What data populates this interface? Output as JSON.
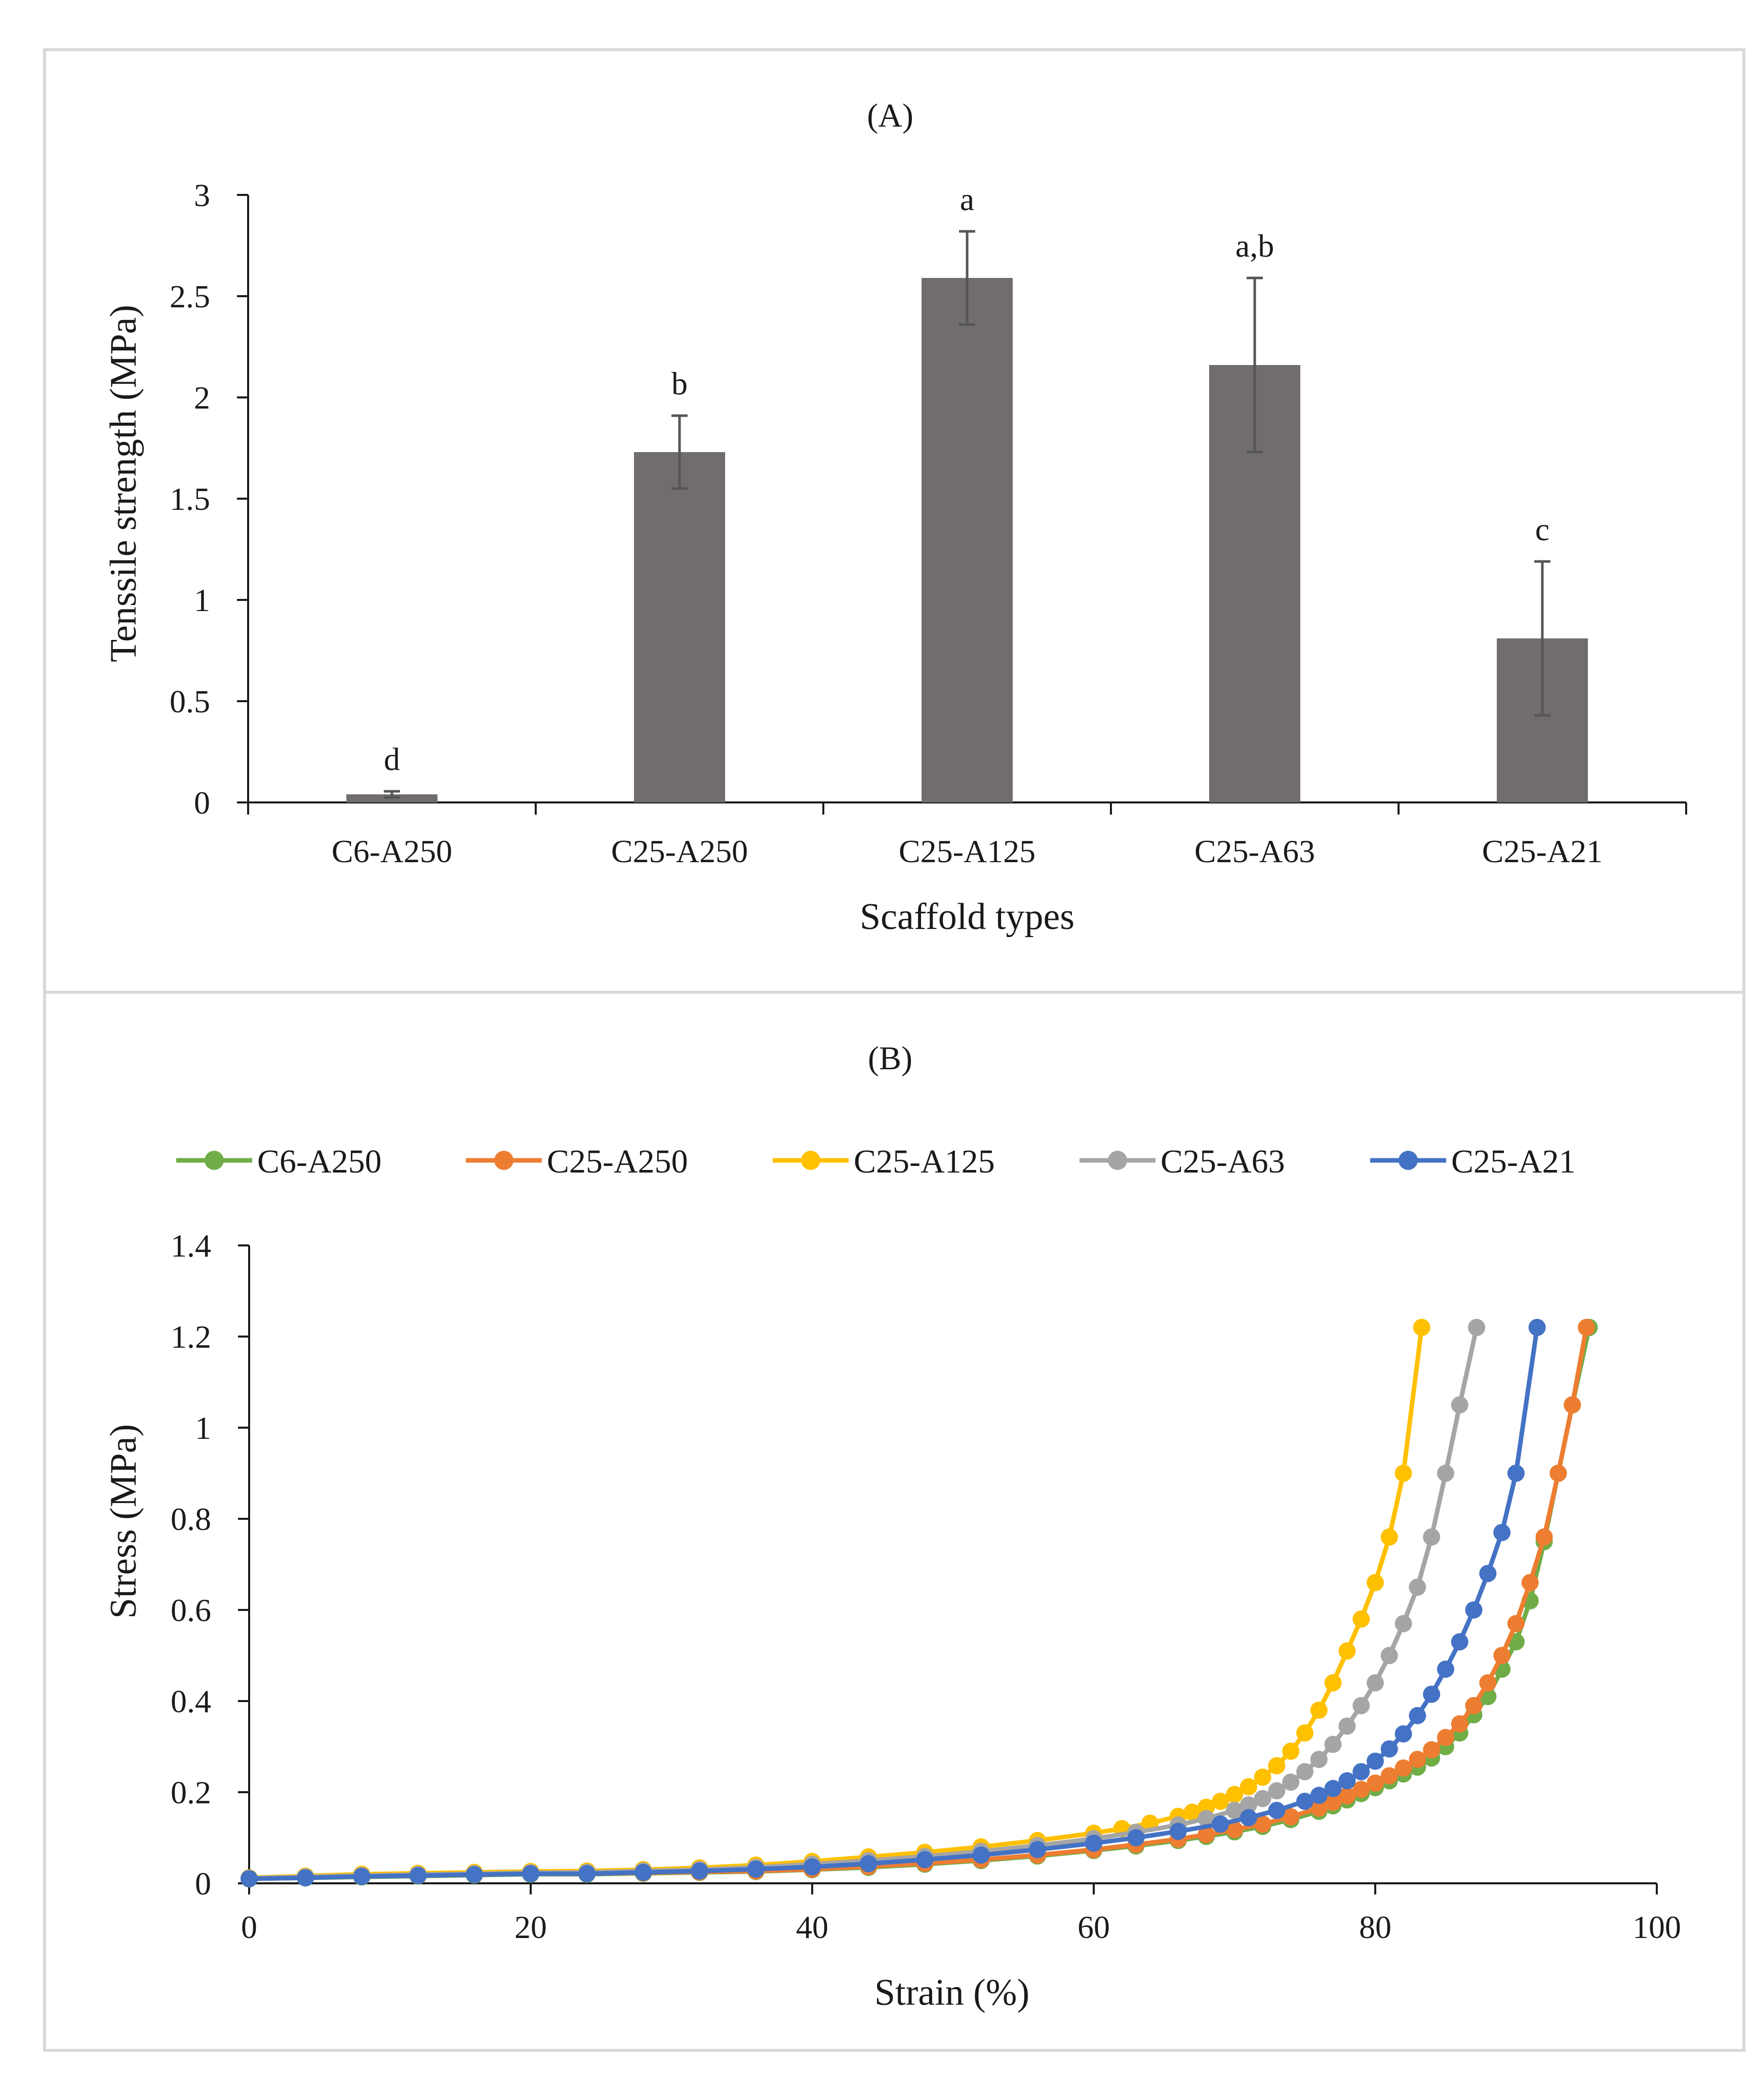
{
  "chart_data": [
    {
      "panel": "(A)",
      "type": "bar",
      "title": "(A)",
      "xlabel": "Scaffold types",
      "ylabel": "Tenssile strength (MPa)",
      "ylim": [
        0,
        3
      ],
      "yticks": [
        "0",
        "0.5",
        "1",
        "1.5",
        "2",
        "2.5",
        "3"
      ],
      "categories": [
        "C6-A250",
        "C25-A250",
        "C25-A125",
        "C25-A63",
        "C25-A21"
      ],
      "values": [
        0.04,
        1.73,
        2.59,
        2.16,
        0.81
      ],
      "errors": [
        0.015,
        0.18,
        0.23,
        0.43,
        0.38
      ],
      "significance_letters": [
        "d",
        "b",
        "a",
        "a,b",
        "c"
      ],
      "bar_color": "#716d6c",
      "error_color": "#555555"
    },
    {
      "panel": "(B)",
      "type": "line",
      "title": "(B)",
      "xlabel": "Strain (%)",
      "ylabel": "Stress (MPa)",
      "xlim": [
        0,
        100
      ],
      "ylim": [
        0,
        1.4
      ],
      "xticks": [
        "0",
        "20",
        "40",
        "60",
        "80",
        "100"
      ],
      "yticks": [
        "0",
        "0.2",
        "0.4",
        "0.6",
        "0.8",
        "1",
        "1.2",
        "1.4"
      ],
      "legend_position": "top",
      "series": [
        {
          "name": "C6-A250",
          "color": "#70ad47",
          "x": [
            0,
            4,
            8,
            12,
            16,
            20,
            24,
            28,
            32,
            36,
            40,
            44,
            48,
            52,
            56,
            60,
            63,
            66,
            68,
            70,
            72,
            74,
            76,
            77,
            78,
            79,
            80,
            81,
            82,
            83,
            84,
            85,
            86,
            87,
            88,
            89,
            90,
            91,
            92,
            93,
            94,
            95.2
          ],
          "y": [
            0.01,
            0.012,
            0.014,
            0.016,
            0.018,
            0.02,
            0.02,
            0.022,
            0.024,
            0.026,
            0.03,
            0.035,
            0.042,
            0.05,
            0.06,
            0.072,
            0.082,
            0.094,
            0.103,
            0.113,
            0.125,
            0.14,
            0.158,
            0.17,
            0.183,
            0.197,
            0.21,
            0.225,
            0.24,
            0.255,
            0.275,
            0.3,
            0.33,
            0.37,
            0.41,
            0.47,
            0.53,
            0.62,
            0.75,
            0.9,
            1.05,
            1.22
          ]
        },
        {
          "name": "C25-A250",
          "color": "#ed7d31",
          "x": [
            0,
            4,
            8,
            12,
            16,
            20,
            24,
            28,
            32,
            36,
            40,
            44,
            48,
            52,
            56,
            60,
            63,
            66,
            68,
            70,
            72,
            74,
            76,
            77,
            78,
            79,
            80,
            81,
            82,
            83,
            84,
            85,
            86,
            87,
            88,
            89,
            90,
            91,
            92,
            93,
            94,
            95
          ],
          "y": [
            0.01,
            0.013,
            0.015,
            0.017,
            0.019,
            0.021,
            0.021,
            0.023,
            0.025,
            0.027,
            0.031,
            0.037,
            0.044,
            0.052,
            0.062,
            0.074,
            0.085,
            0.097,
            0.107,
            0.118,
            0.13,
            0.146,
            0.165,
            0.178,
            0.192,
            0.206,
            0.22,
            0.236,
            0.253,
            0.272,
            0.293,
            0.32,
            0.35,
            0.39,
            0.44,
            0.5,
            0.57,
            0.66,
            0.76,
            0.9,
            1.05,
            1.22
          ]
        },
        {
          "name": "C25-A125",
          "color": "#ffc000",
          "x": [
            0,
            4,
            8,
            12,
            16,
            20,
            24,
            28,
            32,
            36,
            40,
            44,
            48,
            52,
            56,
            60,
            62,
            64,
            66,
            67,
            68,
            69,
            70,
            71,
            72,
            73,
            74,
            75,
            76,
            77,
            78,
            79,
            80,
            81,
            82,
            83.3
          ],
          "y": [
            0.012,
            0.016,
            0.02,
            0.022,
            0.024,
            0.026,
            0.027,
            0.03,
            0.034,
            0.04,
            0.048,
            0.058,
            0.068,
            0.08,
            0.094,
            0.11,
            0.12,
            0.132,
            0.147,
            0.156,
            0.167,
            0.18,
            0.195,
            0.212,
            0.233,
            0.258,
            0.29,
            0.33,
            0.38,
            0.44,
            0.51,
            0.58,
            0.66,
            0.76,
            0.9,
            1.22
          ]
        },
        {
          "name": "C25-A63",
          "color": "#a5a5a5",
          "x": [
            0,
            4,
            8,
            12,
            16,
            20,
            24,
            28,
            32,
            36,
            40,
            44,
            48,
            52,
            56,
            60,
            63,
            66,
            68,
            70,
            71,
            72,
            73,
            74,
            75,
            76,
            77,
            78,
            79,
            80,
            81,
            82,
            83,
            84,
            85,
            86,
            87.2
          ],
          "y": [
            0.011,
            0.014,
            0.017,
            0.019,
            0.021,
            0.023,
            0.024,
            0.027,
            0.03,
            0.035,
            0.042,
            0.05,
            0.059,
            0.07,
            0.083,
            0.098,
            0.112,
            0.128,
            0.142,
            0.16,
            0.172,
            0.186,
            0.203,
            0.222,
            0.245,
            0.272,
            0.305,
            0.345,
            0.39,
            0.44,
            0.5,
            0.57,
            0.65,
            0.76,
            0.9,
            1.05,
            1.22
          ]
        },
        {
          "name": "C25-A21",
          "color": "#4472c4",
          "x": [
            0,
            4,
            8,
            12,
            16,
            20,
            24,
            28,
            32,
            36,
            40,
            44,
            48,
            52,
            56,
            60,
            63,
            66,
            69,
            71,
            73,
            75,
            76,
            77,
            78,
            79,
            80,
            81,
            82,
            83,
            84,
            85,
            86,
            87,
            88,
            89,
            90,
            91.5
          ],
          "y": [
            0.01,
            0.012,
            0.015,
            0.017,
            0.019,
            0.021,
            0.021,
            0.024,
            0.027,
            0.031,
            0.036,
            0.043,
            0.052,
            0.062,
            0.074,
            0.088,
            0.1,
            0.114,
            0.13,
            0.144,
            0.16,
            0.18,
            0.193,
            0.208,
            0.225,
            0.245,
            0.268,
            0.295,
            0.328,
            0.368,
            0.415,
            0.47,
            0.53,
            0.6,
            0.68,
            0.77,
            0.9,
            1.22
          ]
        }
      ]
    }
  ]
}
